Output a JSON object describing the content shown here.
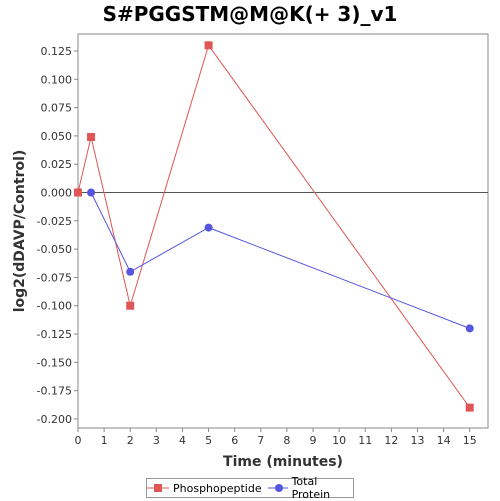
{
  "chart_data": {
    "type": "line",
    "title": "S#PGGSTM@M@K(+ 3)_v1",
    "xlabel": "Time (minutes)",
    "ylabel": "log2(dDAVP/Control)",
    "xlim": [
      0,
      15.7
    ],
    "ylim": [
      -0.208,
      0.14
    ],
    "xticks": [
      0,
      1,
      2,
      3,
      4,
      5,
      6,
      7,
      8,
      9,
      10,
      11,
      12,
      13,
      14,
      15
    ],
    "yticks": [
      0.125,
      0.1,
      0.075,
      0.05,
      0.025,
      0.0,
      -0.025,
      -0.05,
      -0.075,
      -0.1,
      -0.125,
      -0.15,
      -0.175,
      -0.2
    ],
    "ytick_labels": [
      "0.125",
      "0.100",
      "0.075",
      "0.050",
      "0.025",
      "0.000",
      "-0.025",
      "-0.050",
      "-0.075",
      "-0.100",
      "-0.125",
      "-0.150",
      "-0.175",
      "-0.200"
    ],
    "zero_line": true,
    "grid": false,
    "legend_position": "bottom",
    "series": [
      {
        "name": "Phosphopeptide",
        "color": "#e05555",
        "marker": "square",
        "x": [
          0,
          0.5,
          2,
          5,
          15
        ],
        "y": [
          0.0,
          0.049,
          -0.1,
          0.13,
          -0.19
        ]
      },
      {
        "name": "Total Protein",
        "color": "#5555e0",
        "marker": "circle",
        "x": [
          0.5,
          2,
          5,
          15
        ],
        "y": [
          0.0,
          -0.07,
          -0.031,
          -0.12
        ]
      }
    ]
  }
}
